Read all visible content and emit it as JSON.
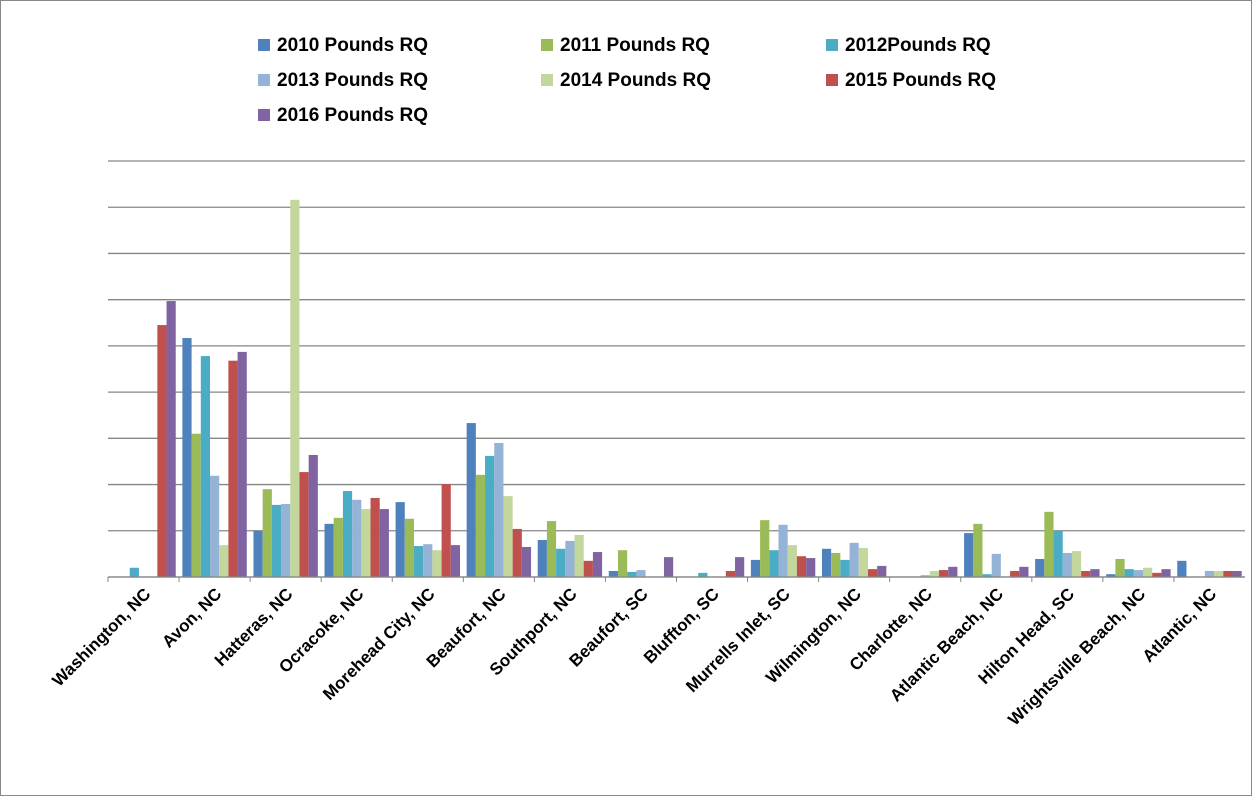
{
  "chart_data": {
    "type": "bar",
    "legend": "top",
    "grid": true,
    "show_ytick_labels": false,
    "categories": [
      "Washington, NC",
      "Avon, NC",
      "Hatteras, NC",
      "Ocracoke, NC",
      "Morehead City, NC",
      "Beaufort, NC",
      "Southport, NC",
      "Beaufort, SC",
      "Bluffton, SC",
      "Murrells Inlet, SC",
      "Wilmington, NC",
      "Charlotte, NC",
      "Atlantic Beach, NC",
      "Hilton Head, SC",
      "Wrightsville Beach, NC",
      "Atlantic, NC"
    ],
    "ylim": [
      0,
      9
    ],
    "yticks": [
      0,
      1,
      2,
      3,
      4,
      5,
      6,
      7,
      8,
      9
    ],
    "series": [
      {
        "name": "2010 Pounds RQ",
        "color": "#4f81bd",
        "values": [
          0,
          5.17,
          1.0,
          1.15,
          1.62,
          3.33,
          0.8,
          0.13,
          0,
          0.37,
          0.61,
          0,
          0.95,
          0.39,
          0.06,
          0.35
        ]
      },
      {
        "name": "2011 Pounds RQ",
        "color": "#9bbb59",
        "values": [
          0,
          3.1,
          1.9,
          1.28,
          1.26,
          2.21,
          1.21,
          0.58,
          0,
          1.23,
          0.52,
          0,
          1.15,
          1.41,
          0.39,
          0
        ]
      },
      {
        "name": "2012Pounds RQ",
        "color": "#4bacc6",
        "values": [
          0.2,
          4.78,
          1.56,
          1.86,
          0.67,
          2.62,
          0.61,
          0.11,
          0.09,
          0.58,
          0.37,
          0,
          0.06,
          1.0,
          0.17,
          0
        ]
      },
      {
        "name": "2013 Pounds RQ",
        "color": "#95b3d7",
        "values": [
          0,
          2.19,
          1.58,
          1.67,
          0.71,
          2.9,
          0.78,
          0.15,
          0,
          1.13,
          0.74,
          0.04,
          0.5,
          0.52,
          0.15,
          0.13
        ]
      },
      {
        "name": "2014 Pounds RQ",
        "color": "#c3d69b",
        "values": [
          0,
          0.69,
          8.16,
          1.47,
          0.58,
          1.75,
          0.91,
          0,
          0,
          0.69,
          0.63,
          0.13,
          0,
          0.56,
          0.2,
          0.13
        ]
      },
      {
        "name": "2015 Pounds RQ",
        "color": "#c0504d",
        "values": [
          5.45,
          4.68,
          2.27,
          1.71,
          2.01,
          1.04,
          0.35,
          0,
          0.13,
          0.45,
          0.17,
          0.15,
          0.13,
          0.13,
          0.09,
          0.13
        ]
      },
      {
        "name": "2016 Pounds RQ",
        "color": "#8064a2",
        "values": [
          5.97,
          4.87,
          2.64,
          1.47,
          0.69,
          0.65,
          0.54,
          0.43,
          0.43,
          0.41,
          0.24,
          0.22,
          0.22,
          0.17,
          0.17,
          0.13
        ]
      }
    ]
  }
}
